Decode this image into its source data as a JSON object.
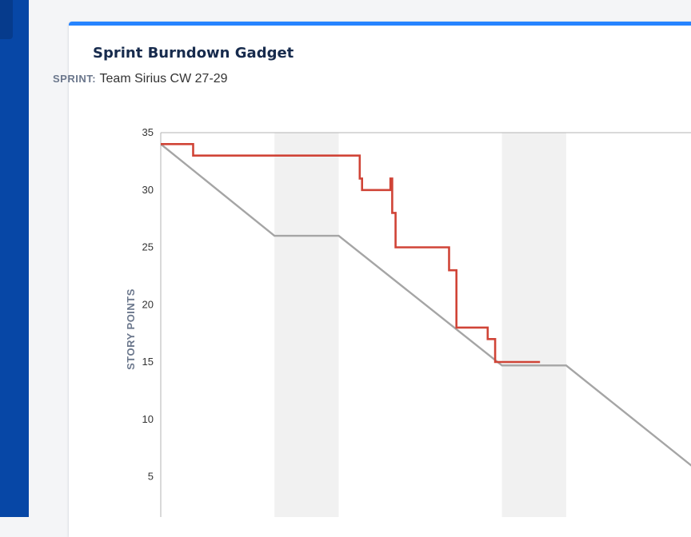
{
  "gadget": {
    "title": "Sprint Burndown Gadget",
    "sprint_label": "SPRINT:",
    "sprint_name": "Team Sirius CW 27-29"
  },
  "colors": {
    "rail": "#0747a6",
    "card_top_border": "#2684ff",
    "remaining_line": "#d04437",
    "guideline": "#a5a5a5",
    "weekend_band": "#f1f1f1"
  },
  "chart_data": {
    "type": "line",
    "title": "",
    "xlabel": "",
    "ylabel": "STORY POINTS",
    "ylim": [
      0,
      35
    ],
    "xlim": [
      0,
      8.3
    ],
    "yticks": [
      35,
      30,
      25,
      20,
      15,
      10,
      5
    ],
    "grid": false,
    "legend": "none",
    "non_working_days": [
      [
        2.0,
        3.13
      ],
      [
        6.0,
        7.13
      ]
    ],
    "series": [
      {
        "role": "guideline",
        "x": [
          0,
          2.0,
          3.13,
          6.0,
          7.13,
          9.5
        ],
        "y": [
          34,
          26,
          26,
          14.7,
          14.7,
          5.3
        ]
      },
      {
        "role": "remaining",
        "x": [
          0,
          0.57,
          0.57,
          3.5,
          3.5,
          3.54,
          3.54,
          4.04,
          4.04,
          4.07,
          4.07,
          4.13,
          4.13,
          5.07,
          5.07,
          5.2,
          5.2,
          5.75,
          5.75,
          5.88,
          5.88,
          6.67
        ],
        "y": [
          34,
          34,
          33,
          33,
          31,
          31,
          30,
          30,
          31,
          31,
          28,
          28,
          25,
          25,
          23,
          23,
          18,
          18,
          17,
          17,
          15,
          15
        ]
      }
    ]
  }
}
